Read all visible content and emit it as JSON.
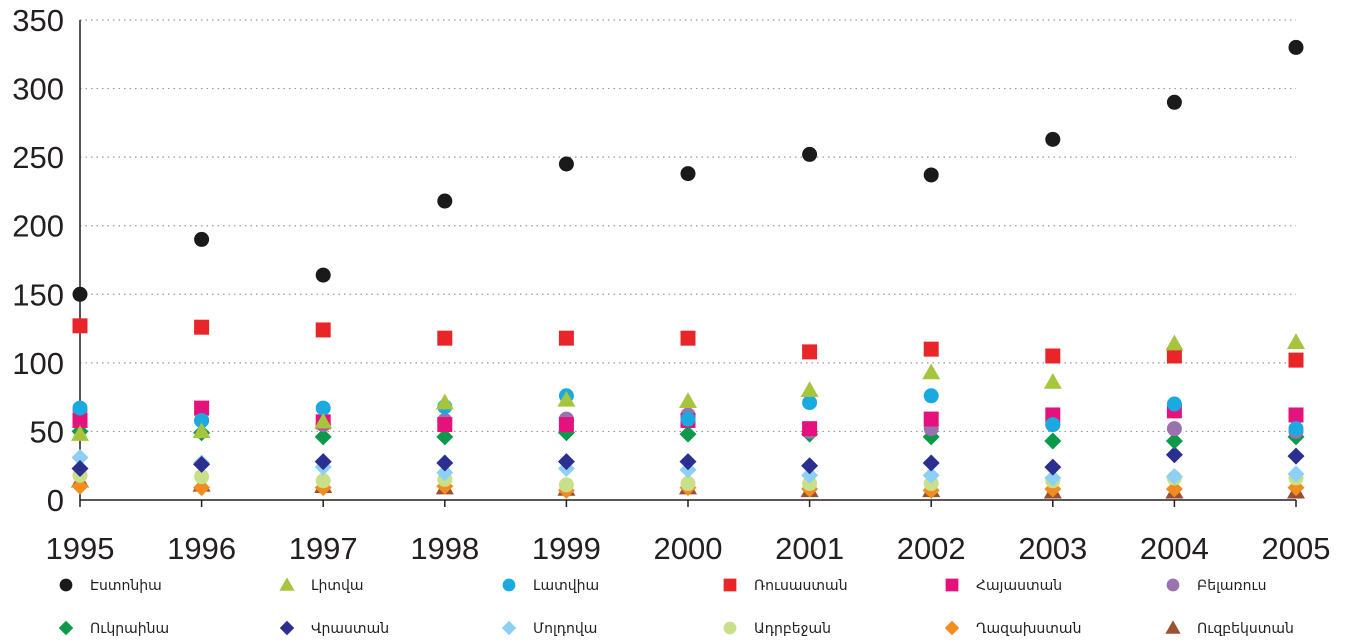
{
  "chart_data": {
    "type": "scatter",
    "title": "",
    "xlabel": "",
    "ylabel": "",
    "x": [
      1995,
      1996,
      1997,
      1998,
      1999,
      2000,
      2001,
      2002,
      2003,
      2004,
      2005
    ],
    "xlim": [
      1995,
      2005
    ],
    "ylim": [
      0,
      350
    ],
    "y_ticks": [
      0,
      50,
      100,
      150,
      200,
      250,
      300,
      350
    ],
    "grid": "horizontal dotted",
    "legend": "bottom, two rows",
    "series": [
      {
        "name": "Էստոնիա",
        "marker": "circle",
        "color": "#1a1a1a",
        "values": [
          150,
          190,
          164,
          218,
          245,
          238,
          252,
          237,
          263,
          290,
          330
        ]
      },
      {
        "name": "Լիտվա",
        "marker": "triangle",
        "color": "#a6c53c",
        "values": [
          48,
          50,
          57,
          71,
          73,
          72,
          80,
          93,
          86,
          114,
          115
        ]
      },
      {
        "name": "Լատվիա",
        "marker": "circle",
        "color": "#1aa9e0",
        "values": [
          67,
          58,
          67,
          68,
          76,
          59,
          71,
          76,
          55,
          70,
          52
        ]
      },
      {
        "name": "Ռուսաստան",
        "marker": "square",
        "color": "#e8262a",
        "values": [
          127,
          126,
          124,
          118,
          118,
          118,
          108,
          110,
          105,
          105,
          102
        ]
      },
      {
        "name": "Հայաստան",
        "marker": "square",
        "color": "#e5127d",
        "values": [
          58,
          67,
          57,
          55,
          55,
          58,
          52,
          59,
          62,
          65,
          62
        ]
      },
      {
        "name": "Բելառուս",
        "marker": "circle",
        "color": "#9b72b0",
        "values": [
          65,
          58,
          55,
          58,
          59,
          62,
          50,
          52,
          55,
          52,
          50
        ]
      },
      {
        "name": "Ուկրաինա",
        "marker": "diamond",
        "color": "#0c9a4a",
        "values": [
          50,
          49,
          46,
          46,
          49,
          48,
          48,
          46,
          43,
          43,
          46
        ]
      },
      {
        "name": "Վրաստան",
        "marker": "diamond",
        "color": "#2b2f8f",
        "values": [
          23,
          26,
          28,
          27,
          28,
          28,
          25,
          27,
          24,
          33,
          32
        ]
      },
      {
        "name": "Մոլդովա",
        "marker": "diamond",
        "color": "#8ed0f3",
        "values": [
          31,
          27,
          24,
          20,
          23,
          22,
          18,
          18,
          16,
          17,
          19
        ]
      },
      {
        "name": "Ադրբեջան",
        "marker": "circle",
        "color": "#c9df8a",
        "values": [
          18,
          17,
          14,
          15,
          11,
          12,
          12,
          12,
          14,
          16,
          16
        ]
      },
      {
        "name": "Ղազախստան",
        "marker": "diamond",
        "color": "#f18d1f",
        "values": [
          10,
          9,
          9,
          10,
          7,
          9,
          8,
          7,
          8,
          8,
          9
        ]
      },
      {
        "name": "Ուզբեկստան",
        "marker": "triangle",
        "color": "#9a5033",
        "values": [
          14,
          11,
          10,
          9,
          8,
          9,
          7,
          7,
          6,
          6,
          6
        ]
      }
    ]
  }
}
